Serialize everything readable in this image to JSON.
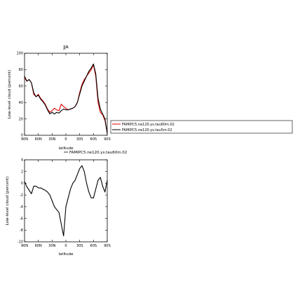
{
  "chart_data": [
    {
      "type": "line",
      "title": "JJA",
      "xlabel": "latitude",
      "ylabel": "Low-level cloud (percent)",
      "xlim": [
        90,
        -90
      ],
      "ylim": [
        0,
        100
      ],
      "xticks": [
        "90N",
        "60N",
        "30N",
        "0",
        "30S",
        "60S",
        "90S"
      ],
      "yticks": [
        "0",
        "20",
        "40",
        "60",
        "80",
        "100"
      ],
      "grid": false,
      "legend": "right",
      "x": [
        90,
        85,
        80,
        75,
        70,
        65,
        60,
        55,
        50,
        45,
        40,
        35,
        30,
        25,
        20,
        15,
        10,
        5,
        0,
        -5,
        -10,
        -15,
        -20,
        -25,
        -30,
        -35,
        -40,
        -45,
        -50,
        -55,
        -60,
        -65,
        -70,
        -75,
        -80,
        -85,
        -90
      ],
      "series": [
        {
          "name": "FAMIPC5.ne120.ys.tau60m.02",
          "color": "#e00000",
          "values": [
            70,
            66,
            68,
            64,
            50,
            47,
            50,
            45,
            42,
            38,
            32,
            28,
            30,
            33,
            31,
            30,
            38,
            35,
            33,
            31,
            32,
            33,
            35,
            40,
            52,
            62,
            68,
            72,
            76,
            80,
            86,
            72,
            40,
            28,
            25,
            18,
            3
          ]
        },
        {
          "name": "FAMIPC5.ne120.ys.tau5m.02",
          "color": "#000000",
          "values": [
            72,
            66,
            68,
            64,
            52,
            47,
            49,
            44,
            41,
            37,
            31,
            26,
            28,
            26,
            28,
            27,
            30,
            32,
            31,
            31,
            32,
            33,
            35,
            40,
            50,
            60,
            66,
            72,
            78,
            82,
            87,
            75,
            45,
            32,
            26,
            20,
            2
          ]
        }
      ]
    },
    {
      "type": "line",
      "title": "",
      "xlabel": "latitude",
      "ylabel": "Low-level cloud (percent)",
      "xlim": [
        90,
        -90
      ],
      "ylim": [
        -10,
        4
      ],
      "xticks": [
        "90N",
        "60N",
        "30N",
        "0",
        "30S",
        "60S",
        "90S"
      ],
      "yticks": [
        "-10",
        "-8",
        "-6",
        "-4",
        "-2",
        "0",
        "2",
        "4"
      ],
      "grid": false,
      "legend": "top",
      "x": [
        90,
        85,
        80,
        75,
        70,
        65,
        60,
        55,
        50,
        45,
        40,
        35,
        30,
        25,
        20,
        15,
        10,
        5,
        0,
        -5,
        -10,
        -15,
        -20,
        -25,
        -30,
        -35,
        -40,
        -45,
        -50,
        -55,
        -60,
        -65,
        -70,
        -75,
        -80,
        -85,
        -90
      ],
      "series": [
        {
          "name": "FAMIPC5.ne120.ys.tau60m.02",
          "color": "#000000",
          "values": [
            0.3,
            -0.6,
            -1.2,
            -1.8,
            -0.5,
            -0.5,
            -0.8,
            -0.8,
            -1.0,
            -1.2,
            -1.5,
            -2.0,
            -3.0,
            -4.0,
            -4.5,
            -5.0,
            -7.0,
            -9.0,
            -4.0,
            -2.5,
            -1.0,
            0.0,
            0.5,
            1.5,
            2.5,
            3.0,
            2.0,
            0.0,
            -1.5,
            -2.5,
            -2.5,
            -1.0,
            0.5,
            1.0,
            -0.5,
            -1.5,
            0.5
          ]
        }
      ]
    }
  ]
}
